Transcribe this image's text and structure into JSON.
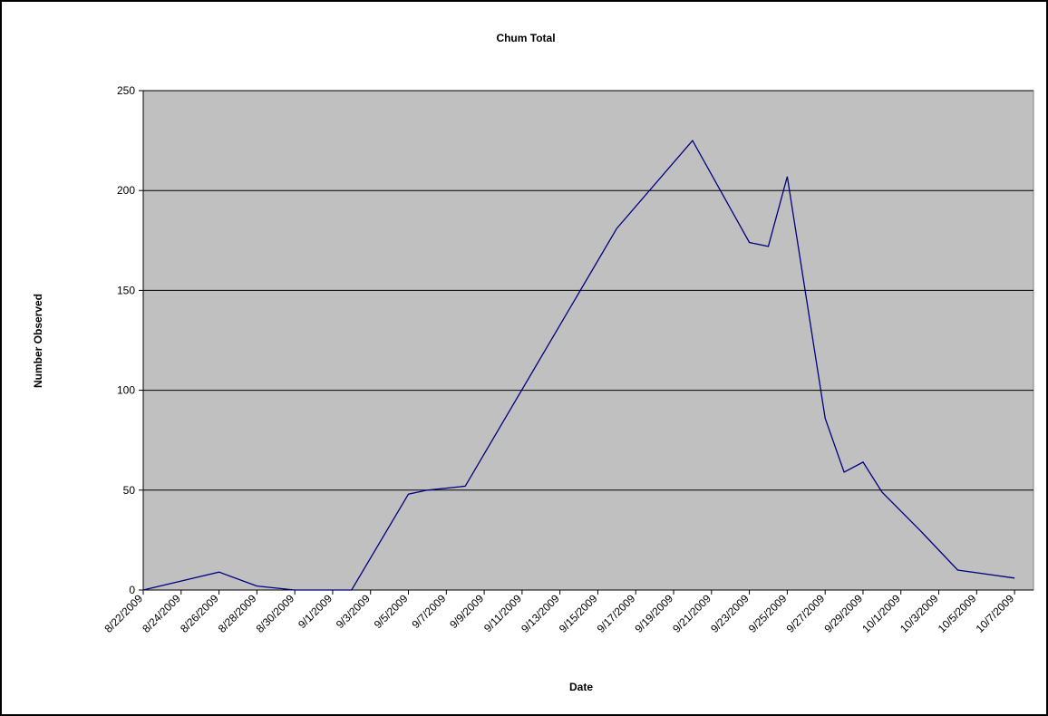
{
  "chart_data": {
    "type": "line",
    "title": "Chum Total",
    "xlabel": "Date",
    "ylabel": "Number Observed",
    "ylim": [
      0,
      250
    ],
    "yticks": [
      0,
      50,
      100,
      150,
      200,
      250
    ],
    "xticks": [
      "8/22/2009",
      "8/24/2009",
      "8/26/2009",
      "8/28/2009",
      "8/30/2009",
      "9/1/2009",
      "9/3/2009",
      "9/5/2009",
      "9/7/2009",
      "9/9/2009",
      "9/11/2009",
      "9/13/2009",
      "9/15/2009",
      "9/17/2009",
      "9/19/2009",
      "9/21/2009",
      "9/23/2009",
      "9/25/2009",
      "9/27/2009",
      "9/29/2009",
      "10/1/2009",
      "10/3/2009",
      "10/5/2009",
      "10/7/2009"
    ],
    "xlim": [
      "8/22/2009",
      "10/8/2009"
    ],
    "grid": true,
    "plot_background": "#c0c0c0",
    "series": [
      {
        "color": "#000080",
        "points": [
          {
            "x": "8/22/2009",
            "y": 0
          },
          {
            "x": "8/26/2009",
            "y": 9
          },
          {
            "x": "8/28/2009",
            "y": 2
          },
          {
            "x": "8/30/2009",
            "y": 0
          },
          {
            "x": "9/2/2009",
            "y": 0
          },
          {
            "x": "9/5/2009",
            "y": 48
          },
          {
            "x": "9/6/2009",
            "y": 50
          },
          {
            "x": "9/8/2009",
            "y": 52
          },
          {
            "x": "9/16/2009",
            "y": 181
          },
          {
            "x": "9/20/2009",
            "y": 225
          },
          {
            "x": "9/23/2009",
            "y": 174
          },
          {
            "x": "9/24/2009",
            "y": 172
          },
          {
            "x": "9/25/2009",
            "y": 207
          },
          {
            "x": "9/27/2009",
            "y": 86
          },
          {
            "x": "9/28/2009",
            "y": 59
          },
          {
            "x": "9/29/2009",
            "y": 64
          },
          {
            "x": "9/30/2009",
            "y": 49
          },
          {
            "x": "10/2/2009",
            "y": 30
          },
          {
            "x": "10/4/2009",
            "y": 10
          },
          {
            "x": "10/7/2009",
            "y": 6
          }
        ]
      }
    ]
  }
}
